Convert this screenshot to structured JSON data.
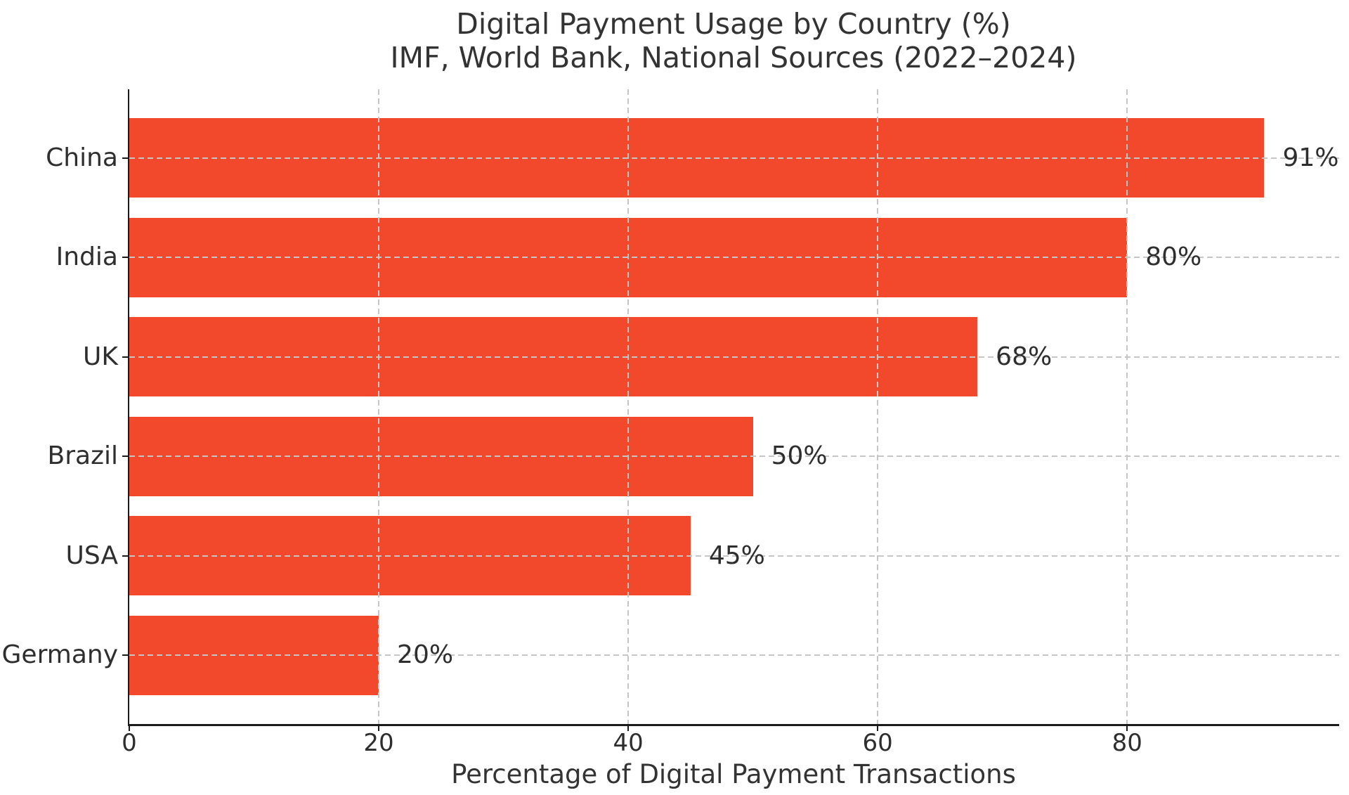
{
  "chart_data": {
    "type": "bar",
    "orientation": "horizontal",
    "title": "Digital Payment Usage by Country (%)",
    "subtitle": "IMF, World Bank, National Sources (2022–2024)",
    "categories": [
      "China",
      "India",
      "UK",
      "Brazil",
      "USA",
      "Germany"
    ],
    "values": [
      91,
      80,
      68,
      50,
      45,
      20
    ],
    "value_labels": [
      "91%",
      "80%",
      "68%",
      "50%",
      "45%",
      "20%"
    ],
    "xlabel": "Percentage of Digital Payment Transactions",
    "ylabel": "",
    "x_ticks": [
      0,
      20,
      40,
      60,
      80
    ],
    "xlim": [
      0,
      97
    ],
    "grid": "dashed x and y gridlines drawn above bars",
    "legend": "none",
    "bar_color": "#f2482c",
    "grid_color": "#c6c6c6",
    "spine_color": "#1a1a1a",
    "text_color": "#2e2e2e"
  }
}
